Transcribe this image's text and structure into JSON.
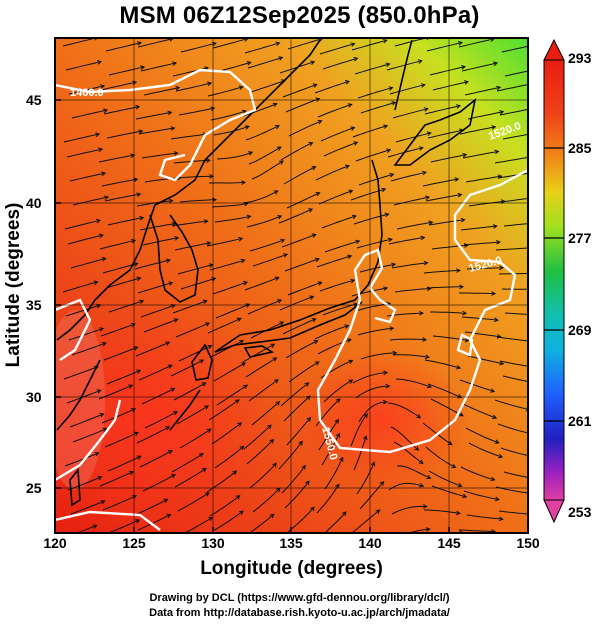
{
  "title": "MSM 06Z12Sep2025 (850.0hPa)",
  "axes": {
    "xlabel": "Longitude (degrees)",
    "ylabel": "Latitude  (degrees)",
    "xticks": [
      "120",
      "125",
      "130",
      "135",
      "140",
      "145",
      "150"
    ],
    "yticks": [
      "45",
      "40",
      "35",
      "30",
      "25"
    ]
  },
  "colorbar": {
    "ticks": [
      "293",
      "285",
      "277",
      "269",
      "261",
      "253"
    ],
    "colors": [
      "#e040a0",
      "#9a20c0",
      "#2020c8",
      "#1e78ff",
      "#10c0c0",
      "#10b060",
      "#40c020",
      "#b0e020",
      "#e8c818",
      "#f08018",
      "#e83818",
      "#e81e10"
    ]
  },
  "contours": {
    "labels": [
      "1460.0",
      "1520.0",
      "1550.0",
      "1520.0"
    ]
  },
  "credits": {
    "line1": "Drawing by DCL (https://www.gfd-dennou.org/library/dcl/)",
    "line2": "Data from http://database.rish.kyoto-u.ac.jp/arch/jmadata/"
  },
  "chart_data": {
    "type": "heatmap",
    "title": "MSM 06Z12Sep2025 (850.0hPa)",
    "xlabel": "Longitude (degrees)",
    "ylabel": "Latitude  (degrees)",
    "xlim": [
      120,
      150
    ],
    "ylim": [
      22.4,
      47.6
    ],
    "colorbar_range": [
      253,
      293
    ],
    "colorbar_ticks": [
      293,
      285,
      277,
      269,
      261,
      253
    ],
    "contour_labels": [
      1460.0,
      1520.0,
      1550.0,
      1520.0
    ],
    "overlay": "wind streamlines"
  }
}
